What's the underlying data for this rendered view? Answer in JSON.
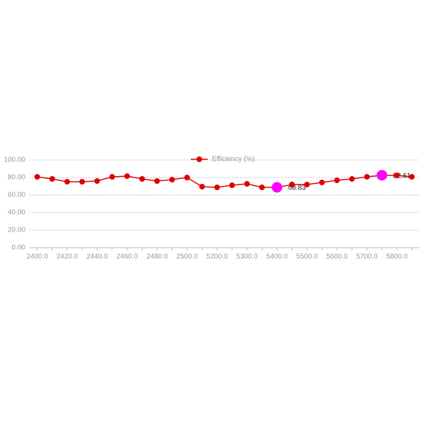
{
  "chart_data": {
    "type": "line",
    "categories": [
      "2400.0",
      null,
      "2420.0",
      null,
      "2440.0",
      null,
      "2460.0",
      null,
      "2480.0",
      null,
      "2500.0",
      null,
      "5200.0",
      null,
      "5300.0",
      null,
      "5400.0",
      null,
      "5500.0",
      null,
      "5600.0",
      null,
      "5700.0",
      null,
      "5800.0",
      null
    ],
    "series": [
      {
        "name": "Efficiency (%)",
        "color": "#e00000",
        "values": [
          80.8,
          78.4,
          75.2,
          75.2,
          76,
          80.8,
          81.6,
          78.4,
          76,
          77.6,
          80,
          69.6,
          68.8,
          71.2,
          72.8,
          68.8,
          68.83,
          72,
          72,
          74.4,
          76.8,
          78.4,
          80.8,
          82.61,
          82.4,
          80.8
        ]
      }
    ],
    "highlight_points": [
      16,
      23
    ],
    "highlight_color": "#ff00ff",
    "ylim": [
      0,
      100
    ],
    "yticks": [
      {
        "value": 0,
        "label": "0.00"
      },
      {
        "value": 20,
        "label": "20.00"
      },
      {
        "value": 40,
        "label": "40.00"
      },
      {
        "value": 60,
        "label": "60.00"
      },
      {
        "value": 80,
        "label": "80.00"
      },
      {
        "value": 100,
        "label": "100.00"
      }
    ],
    "grid": true,
    "legend": "top"
  }
}
